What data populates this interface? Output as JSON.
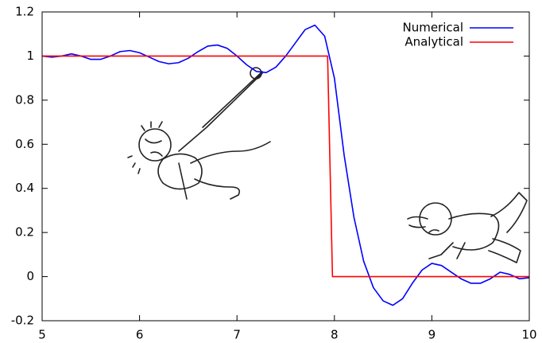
{
  "chart_data": {
    "type": "line",
    "xlim": [
      5,
      10
    ],
    "ylim": [
      -0.2,
      1.2
    ],
    "xticks": [
      5,
      6,
      7,
      8,
      9,
      10
    ],
    "yticks": [
      -0.2,
      0,
      0.2,
      0.4,
      0.6,
      0.8,
      1,
      1.2
    ],
    "legend": "top-right",
    "series": [
      {
        "name": "Numerical",
        "color": "#0000ff",
        "x": [
          5.0,
          5.1,
          5.2,
          5.3,
          5.4,
          5.5,
          5.6,
          5.7,
          5.8,
          5.9,
          6.0,
          6.1,
          6.2,
          6.3,
          6.4,
          6.5,
          6.6,
          6.7,
          6.8,
          6.9,
          7.0,
          7.1,
          7.2,
          7.3,
          7.4,
          7.5,
          7.6,
          7.7,
          7.8,
          7.9,
          8.0,
          8.1,
          8.2,
          8.3,
          8.4,
          8.5,
          8.6,
          8.7,
          8.8,
          8.9,
          9.0,
          9.1,
          9.2,
          9.3,
          9.4,
          9.5,
          9.6,
          9.7,
          9.8,
          9.9,
          10.0
        ],
        "values": [
          1.0,
          0.995,
          1.0,
          1.01,
          1.0,
          0.985,
          0.985,
          1.0,
          1.02,
          1.025,
          1.015,
          0.995,
          0.975,
          0.965,
          0.97,
          0.99,
          1.02,
          1.045,
          1.05,
          1.035,
          1.0,
          0.96,
          0.93,
          0.925,
          0.95,
          1.0,
          1.06,
          1.12,
          1.14,
          1.09,
          0.9,
          0.55,
          0.27,
          0.07,
          -0.05,
          -0.11,
          -0.13,
          -0.1,
          -0.03,
          0.03,
          0.06,
          0.05,
          0.02,
          -0.01,
          -0.03,
          -0.03,
          -0.01,
          0.02,
          0.01,
          -0.01,
          -0.005
        ]
      },
      {
        "name": "Analytical",
        "color": "#ff0000",
        "x": [
          5,
          7.93,
          7.98,
          10
        ],
        "values": [
          1,
          1,
          0,
          0
        ]
      }
    ]
  }
}
